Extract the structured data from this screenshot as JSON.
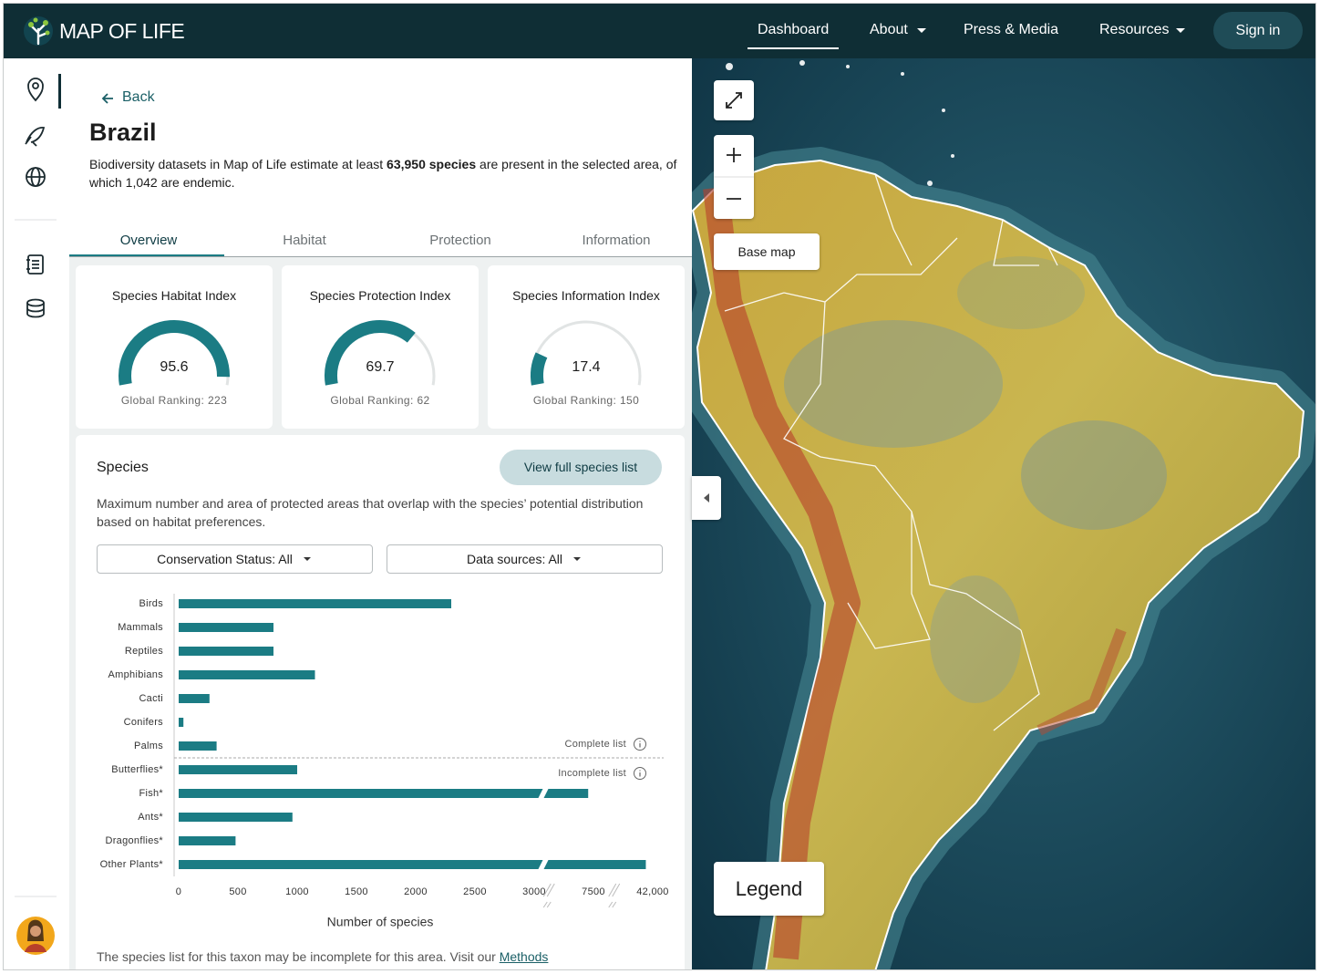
{
  "header": {
    "logo": "MAP OF LIFE",
    "nav": [
      "Dashboard",
      "About",
      "Press & Media",
      "Resources"
    ],
    "sign_in": "Sign in"
  },
  "panel": {
    "back": "Back",
    "title": "Brazil",
    "description": [
      "Biodiversity datasets in Map of Life estimate at least ",
      "63,950 species",
      " are present in the selected area, of which 1,042 are endemic."
    ],
    "tabs": [
      "Overview",
      "Habitat",
      "Protection",
      "Information"
    ],
    "indices": {
      "range": [
        0,
        100
      ],
      "items": [
        {
          "title": "Species Habitat Index",
          "value": 95.6,
          "ranking": "Global Ranking: 223"
        },
        {
          "title": "Species Protection Index",
          "value": 69.7,
          "ranking": "Global Ranking: 62"
        },
        {
          "title": "Species Information Index",
          "value": 17.4,
          "ranking": "Global Ranking: 150"
        }
      ]
    }
  },
  "species": {
    "title": "Species",
    "button": "View full species list",
    "description": "Maximum number and area of protected areas that overlap with the species’ potential distribution based on habitat preferences.",
    "filters": [
      "Conservation Status: All",
      "Data sources: All"
    ],
    "footer": [
      "The species list for this taxon may be incomplete for this area. Visit our ",
      "Methods"
    ]
  },
  "chart_data": {
    "type": "bar",
    "orientation": "horizontal",
    "categories": [
      "Birds",
      "Mammals",
      "Reptiles",
      "Amphibians",
      "Cacti",
      "Conifers",
      "Palms",
      "Butterflies*",
      "Fish*",
      "Ants*",
      "Dragonflies*",
      "Other Plants*"
    ],
    "values": [
      2300,
      800,
      800,
      1150,
      260,
      40,
      320,
      1000,
      7100,
      960,
      480,
      38000
    ],
    "color": "#1b7c84",
    "xlim": [
      0,
      42000
    ],
    "xticks": [
      0,
      500,
      1000,
      1500,
      2000,
      2500,
      3000,
      7500,
      {
        "value": 42000,
        "label": "42,000"
      }
    ],
    "xlabel": "Number of species",
    "annotations": [
      "Complete list",
      "Incomplete list"
    ]
  },
  "map": {
    "base_map": "Base map",
    "legend": "Legend"
  }
}
